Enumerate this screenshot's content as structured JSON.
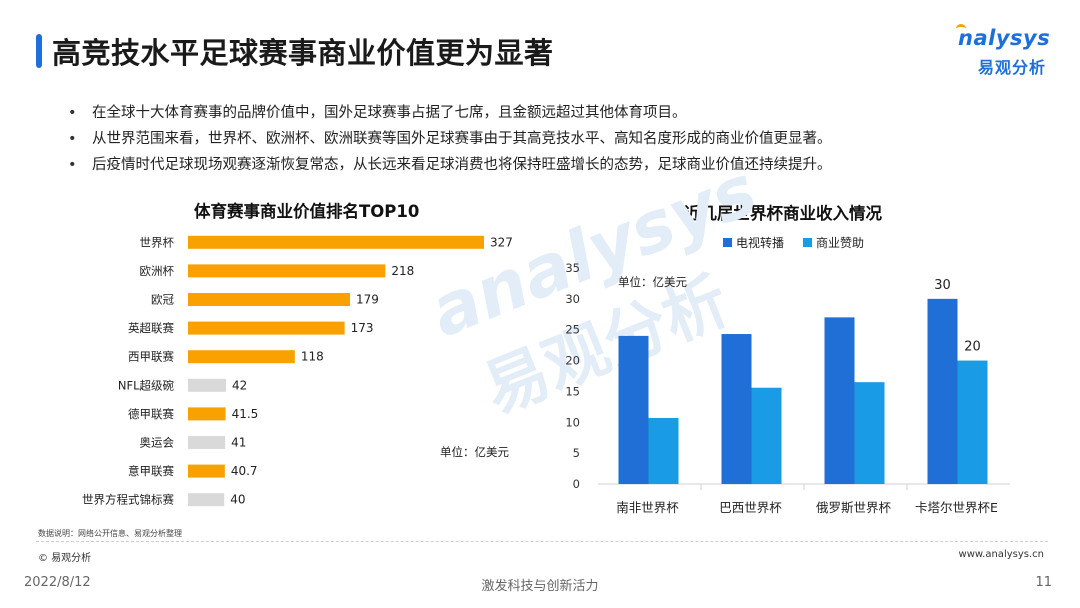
{
  "header": {
    "title": "高竞技水平足球赛事商业价值更为显著",
    "logo_en": "nalysys",
    "logo_cn": "易观分析"
  },
  "watermark": {
    "en": "analysys",
    "cn": "易观分析"
  },
  "bullets": [
    "在全球十大体育赛事的品牌价值中，国外足球赛事占据了七席，且金额远超过其他体育项目。",
    "从世界范围来看，世界杯、欧洲杯、欧洲联赛等国外足球赛事由于其高竞技水平、高知名度形成的商业价值更显著。",
    "后疫情时代足球现场观赛逐渐恢复常态，从长远来看足球消费也将保持旺盛增长的态势，足球商业价值还持续提升。"
  ],
  "chart_data": [
    {
      "type": "bar",
      "orientation": "horizontal",
      "title": "体育赛事商业价值排名TOP10",
      "unit_label": "单位：亿美元",
      "categories": [
        "世界杯",
        "欧洲杯",
        "欧冠",
        "英超联赛",
        "西甲联赛",
        "NFL超级碗",
        "德甲联赛",
        "奥运会",
        "意甲联赛",
        "世界方程式锦标赛"
      ],
      "values": [
        327,
        218,
        179,
        173,
        118,
        42,
        41.5,
        41,
        40.7,
        40
      ],
      "value_labels": [
        "327",
        "218",
        "179",
        "173",
        "118",
        "42",
        "41.5",
        "41",
        "40.7",
        "40"
      ],
      "bar_colors": [
        "#f9a100",
        "#f9a100",
        "#f9a100",
        "#f9a100",
        "#f9a100",
        "#d9d9d9",
        "#f9a100",
        "#d9d9d9",
        "#f9a100",
        "#d9d9d9"
      ],
      "xlim": [
        0,
        327
      ]
    },
    {
      "type": "bar",
      "title": "近几届世界杯商业收入情况",
      "unit_label": "单位：亿美元",
      "categories": [
        "南非世界杯",
        "巴西世界杯",
        "俄罗斯世界杯",
        "卡塔尔世界杯E"
      ],
      "series": [
        {
          "name": "电视转播",
          "values": [
            24,
            24.3,
            27,
            30
          ],
          "color": "#1f6fd6"
        },
        {
          "name": "商业赞助",
          "values": [
            10.7,
            15.6,
            16.5,
            20
          ],
          "color": "#1a9be6"
        }
      ],
      "data_labels": [
        {
          "series": 0,
          "index": 3,
          "text": "30"
        },
        {
          "series": 1,
          "index": 3,
          "text": "20"
        }
      ],
      "ylim": [
        0,
        35
      ],
      "yticks": [
        "0",
        "5",
        "10",
        "15",
        "20",
        "25",
        "30",
        "35"
      ],
      "legend_position": "top"
    }
  ],
  "footer": {
    "note": "数据说明：网络公开信息、易观分析整理",
    "copyright": "© 易观分析",
    "site": "www.analysys.cn",
    "date": "2022/8/12",
    "slogan": "激发科技与创新活力",
    "page": "11"
  }
}
